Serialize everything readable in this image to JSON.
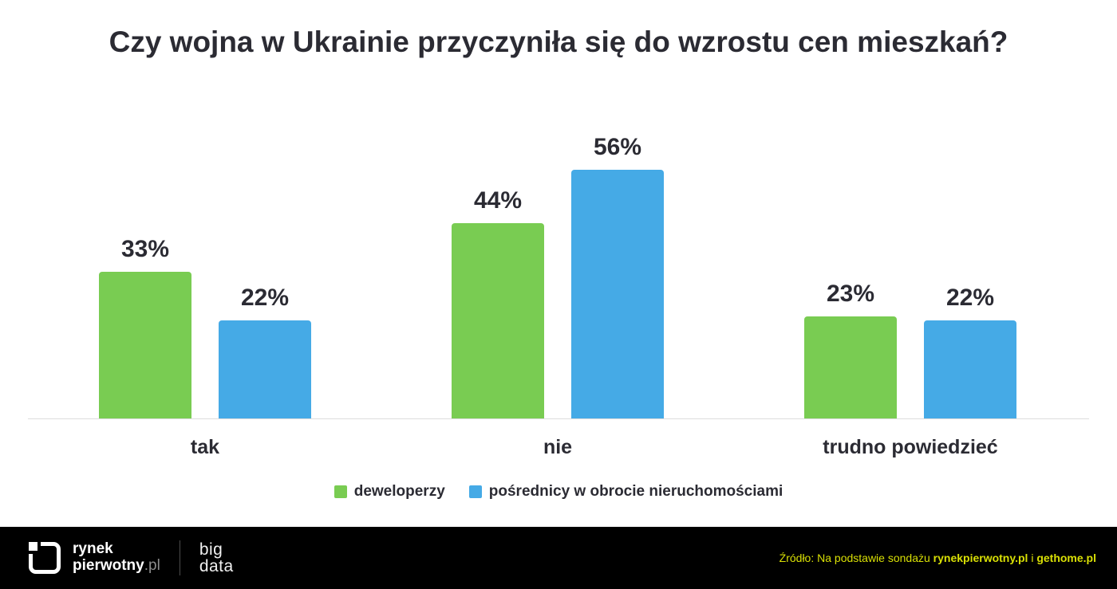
{
  "chart_data": {
    "type": "bar",
    "title": "Czy wojna w Ukrainie przyczyniła się do wzrostu cen mieszkań?",
    "categories": [
      "tak",
      "nie",
      "trudno powiedzieć"
    ],
    "series": [
      {
        "name": "deweloperzy",
        "color": "#79cc52",
        "values": [
          33,
          44,
          23
        ]
      },
      {
        "name": "pośrednicy w obrocie nieruchomościami",
        "color": "#45aae6",
        "values": [
          22,
          56,
          22
        ]
      }
    ],
    "value_suffix": "%",
    "ylim": [
      0,
      60
    ],
    "grid": false,
    "legend_position": "bottom"
  },
  "footer": {
    "logo_line1": "rynek",
    "logo_line2": "pierwotny",
    "logo_suffix": ".pl",
    "brand2_line1": "big",
    "brand2_line2": "data",
    "source_prefix": "Źródło: Na podstawie sondażu ",
    "source_bold1": "rynekpierwotny.pl",
    "source_mid": " i ",
    "source_bold2": "gethome.pl",
    "accent_color": "#d9e005"
  }
}
